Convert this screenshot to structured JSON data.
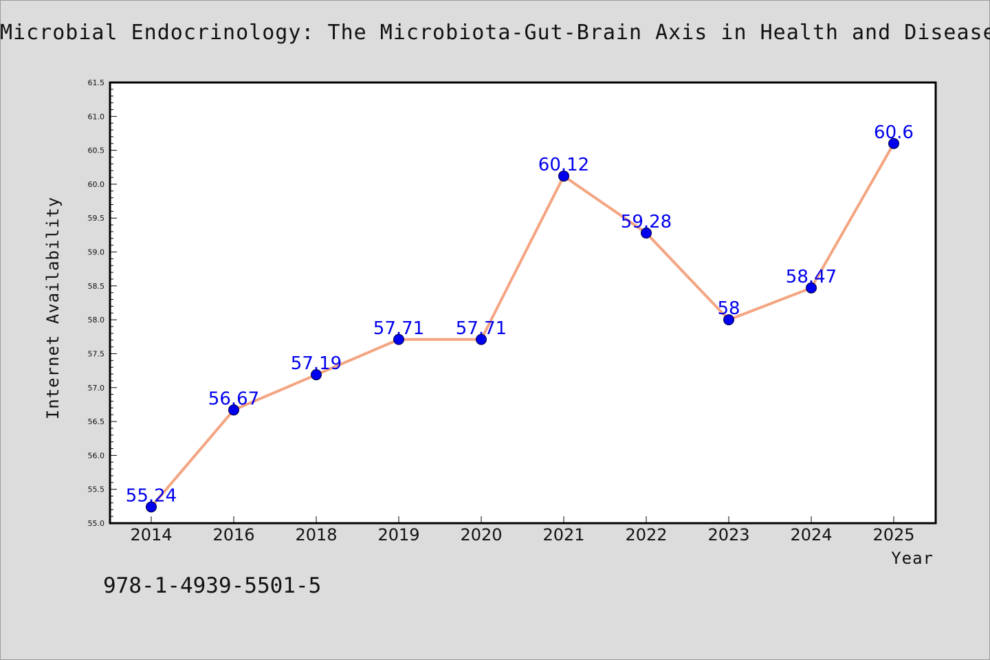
{
  "chart_data": {
    "type": "line",
    "title": "Microbial Endocrinology: The Microbiota-Gut-Brain Axis in Health and Disease",
    "xlabel": "Year",
    "ylabel": "Internet Availability",
    "categories": [
      "2014",
      "2016",
      "2018",
      "2019",
      "2020",
      "2021",
      "2022",
      "2023",
      "2024",
      "2025"
    ],
    "values": [
      55.24,
      56.67,
      57.19,
      57.71,
      57.71,
      60.12,
      59.28,
      58,
      58.47,
      60.6
    ],
    "data_labels": [
      "55.24",
      "56.67",
      "57.19",
      "57.71",
      "57.71",
      "60.12",
      "59.28",
      "58",
      "58.47",
      "60.6"
    ],
    "ylim": [
      55.0,
      61.5
    ],
    "yticks": [
      "55.0",
      "55.5",
      "56.0",
      "56.5",
      "57.0",
      "57.5",
      "58.0",
      "58.5",
      "59.0",
      "59.5",
      "60.0",
      "60.5",
      "61.0",
      "61.5"
    ],
    "grid": false,
    "line_color": "#f4a582",
    "marker_color": "#0000ee",
    "label_color": "#0000ee"
  },
  "footer": {
    "isbn": "978-1-4939-5501-5"
  }
}
